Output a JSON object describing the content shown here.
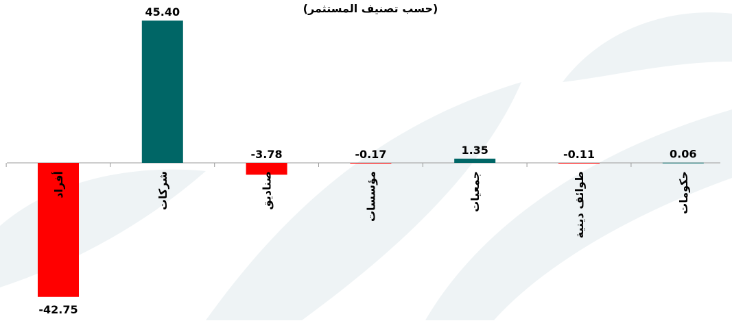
{
  "chart_data": {
    "type": "bar",
    "subtitle": "(حسب تصنيف المستثمر)",
    "categories": [
      "أفراد",
      "شركات",
      "صناديق",
      "مؤسسات",
      "جمعيات",
      "طوائف دينية",
      "حكومات"
    ],
    "values": [
      -42.75,
      45.4,
      -3.78,
      -0.17,
      1.35,
      -0.11,
      0.06
    ],
    "value_labels": [
      "-42.75",
      "45.40",
      "-3.78",
      "-0.17",
      "1.35",
      "-0.11",
      "0.06"
    ],
    "colors": [
      "#ff0000",
      "#006666",
      "#ff0000",
      "#ff0000",
      "#006666",
      "#ff0000",
      "#006666"
    ]
  }
}
